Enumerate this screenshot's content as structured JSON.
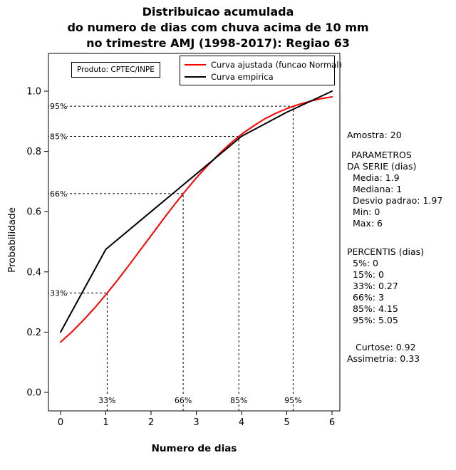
{
  "title": {
    "line1": "Distribuicao acumulada",
    "line2": "do numero de dias com chuva acima de 10 mm",
    "line3": "no trimestre AMJ (1998-2017): Regiao 63"
  },
  "product_box": {
    "label": "Produto: CPTEC/INPE"
  },
  "legend": {
    "entries": [
      {
        "label": "Curva ajustada (funcao Normal)",
        "color": "#ff0000"
      },
      {
        "label": "Curva empirica",
        "color": "#000000"
      }
    ]
  },
  "axes": {
    "xlabel": "Numero de dias",
    "ylabel": "Probabilidade"
  },
  "stats": {
    "amostra": "Amostra: 20",
    "param_title1": "PARAMETROS",
    "param_title2": "DA SERIE (dias)",
    "media": "Media: 1.9",
    "mediana": "Mediana: 1",
    "desvio": "Desvio padrao: 1.97",
    "min": "Min: 0",
    "max": "Max: 6",
    "percentis_title": "PERCENTIS (dias)",
    "p5": "5%: 0",
    "p15": "15%: 0",
    "p33": "33%: 0.27",
    "p66": "66%: 3",
    "p85": "85%: 4.15",
    "p95": "95%: 5.05",
    "curtose": "Curtose: 0.92",
    "assimetria": "Assimetria: 0.33"
  },
  "chart_data": {
    "type": "line",
    "title": "Distribuicao acumulada do numero de dias com chuva acima de 10 mm no trimestre AMJ (1998-2017): Regiao 63",
    "xlabel": "Numero de dias",
    "ylabel": "Probabilidade",
    "xlim": [
      0,
      6
    ],
    "ylim": [
      0,
      1
    ],
    "grid": false,
    "legend_position": "top-center-inside",
    "x_ticks": [
      0,
      1,
      2,
      3,
      4,
      5,
      6
    ],
    "y_tick_values": [
      0,
      0.2,
      0.4,
      0.6,
      0.8,
      1.0
    ],
    "y_tick_labels": [
      "0.0",
      "0.2",
      "0.4",
      "0.6",
      "0.8",
      "1.0"
    ],
    "series": [
      {
        "name": "Curva ajustada (funcao Normal)",
        "color": "#ff0000",
        "x": [
          0,
          0.25,
          0.5,
          0.75,
          1,
          1.25,
          1.5,
          1.75,
          2,
          2.25,
          2.5,
          2.75,
          3,
          3.25,
          3.5,
          3.75,
          4,
          4.25,
          4.5,
          4.75,
          5,
          5.25,
          5.5,
          5.75,
          6
        ],
        "y": [
          0.167,
          0.201,
          0.239,
          0.28,
          0.324,
          0.371,
          0.42,
          0.47,
          0.52,
          0.571,
          0.62,
          0.667,
          0.712,
          0.753,
          0.791,
          0.826,
          0.857,
          0.883,
          0.907,
          0.926,
          0.942,
          0.955,
          0.966,
          0.975,
          0.981
        ]
      },
      {
        "name": "Curva empirica",
        "color": "#000000",
        "x": [
          0,
          1,
          2,
          3,
          4,
          5,
          6
        ],
        "y": [
          0.2,
          0.475,
          0.6,
          0.725,
          0.85,
          0.93,
          1.0
        ]
      }
    ],
    "percentile_guides": [
      {
        "label": "33%",
        "x": 1.03,
        "y": 0.33
      },
      {
        "label": "66%",
        "x": 2.71,
        "y": 0.66
      },
      {
        "label": "85%",
        "x": 3.94,
        "y": 0.85
      },
      {
        "label": "95%",
        "x": 5.14,
        "y": 0.95
      }
    ]
  }
}
